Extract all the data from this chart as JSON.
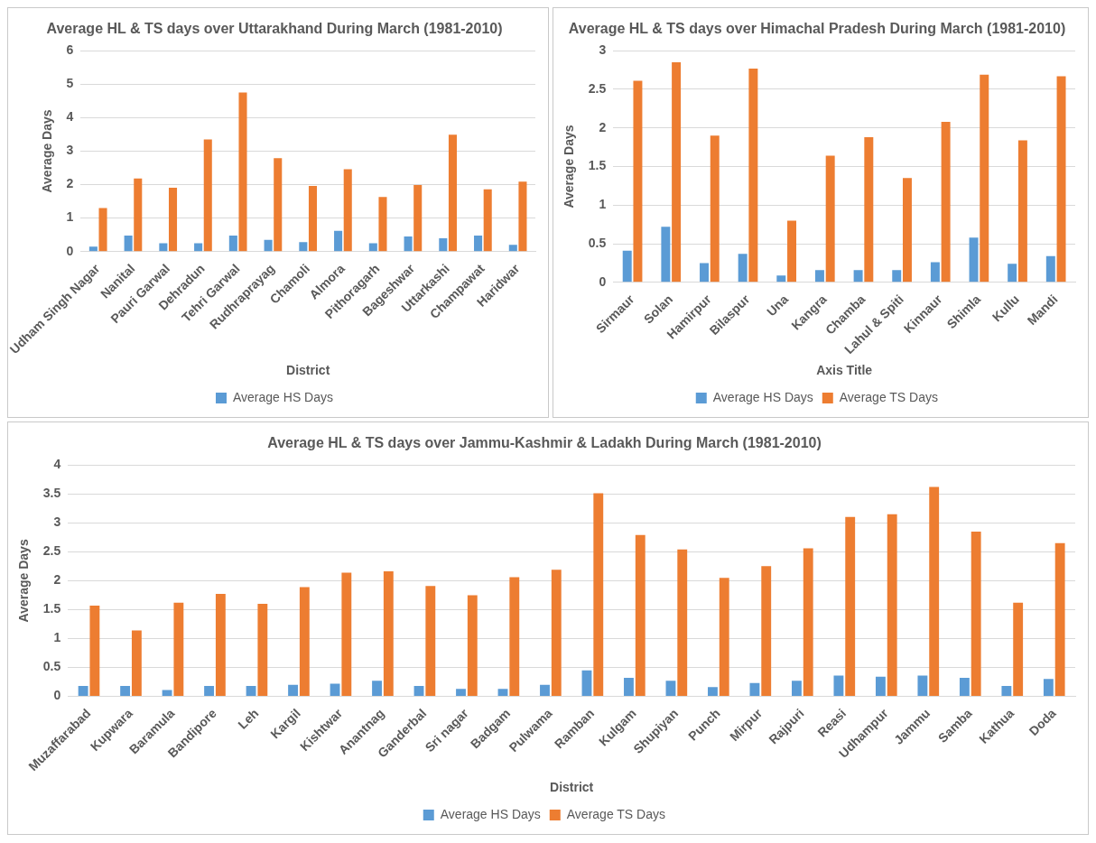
{
  "chart_data": [
    {
      "type": "bar",
      "title": "Average HL & TS days over Uttarakhand During March (1981-2010)",
      "xlabel": "District",
      "ylabel": "Average Days",
      "categories": [
        "Udham Singh Nagar",
        "Nanital",
        "Pauri Garwal",
        "Dehradun",
        "Tehri Garwal",
        "Rudhraprayag",
        "Chamoli",
        "Almora",
        "Pithoragarh",
        "Bageshwar",
        "Uttarkashi",
        "Champawat",
        "Haridwar"
      ],
      "series": [
        {
          "name": "Average HS Days",
          "color": "#5b9bd5",
          "values": [
            0.15,
            0.48,
            0.25,
            0.25,
            0.48,
            0.35,
            0.28,
            0.62,
            0.25,
            0.45,
            0.4,
            0.48,
            0.2
          ]
        },
        {
          "color": "#ed7d31",
          "values": [
            1.3,
            2.18,
            1.91,
            3.35,
            4.75,
            2.79,
            1.96,
            2.46,
            1.63,
            1.99,
            3.49,
            1.86,
            2.09
          ]
        }
      ],
      "ylim": [
        0,
        6
      ],
      "yticks": [
        0,
        1,
        2,
        3,
        4,
        5,
        6
      ],
      "grid": "y",
      "legend": "bottom"
    },
    {
      "type": "bar",
      "title": "Average HL & TS days over Himachal Pradesh During March (1981-2010)",
      "xlabel": "Axis Title",
      "ylabel": "Average Days",
      "categories": [
        "Sirmaur",
        "Solan",
        "Hamirpur",
        "Bilaspur",
        "Una",
        "Kangra",
        "Chamba",
        "Lahul & Spiti",
        "Kinnaur",
        "Shimla",
        "Kullu",
        "Mandi"
      ],
      "series": [
        {
          "name": "Average HS Days",
          "color": "#5b9bd5",
          "values": [
            0.41,
            0.72,
            0.25,
            0.37,
            0.09,
            0.16,
            0.16,
            0.16,
            0.26,
            0.58,
            0.24,
            0.34
          ]
        },
        {
          "name": "Average TS Days",
          "color": "#ed7d31",
          "values": [
            2.61,
            2.85,
            1.9,
            2.77,
            0.8,
            1.64,
            1.88,
            1.35,
            2.08,
            2.69,
            1.84,
            2.67
          ]
        }
      ],
      "ylim": [
        0,
        3
      ],
      "yticks": [
        0,
        0.5,
        1,
        1.5,
        2,
        2.5,
        3
      ],
      "grid": "y",
      "legend": "bottom"
    },
    {
      "type": "bar",
      "title": "Average HL & TS days over Jammu-Kashmir & Ladakh During March (1981-2010)",
      "xlabel": "District",
      "ylabel": "Average Days",
      "categories": [
        "Muzaffarabad",
        "Kupwara",
        "Baramula",
        "Bandipore",
        "Leh",
        "Kargil",
        "Kishtwar",
        "Anantnag",
        "Ganderbal",
        "Sri nagar",
        "Badgam",
        "Pulwama",
        "Ramban",
        "Kulgam",
        "Shupiyan",
        "Punch",
        "Mirpur",
        "Rajpuri",
        "Reasi",
        "Udhampur",
        "Jammu",
        "Samba",
        "Kathua",
        "Doda"
      ],
      "series": [
        {
          "name": "Average HS Days",
          "color": "#5b9bd5",
          "values": [
            0.18,
            0.18,
            0.11,
            0.18,
            0.18,
            0.2,
            0.22,
            0.27,
            0.18,
            0.13,
            0.13,
            0.2,
            0.45,
            0.32,
            0.27,
            0.16,
            0.23,
            0.27,
            0.36,
            0.34,
            0.36,
            0.32,
            0.18,
            0.3
          ]
        },
        {
          "name": "Average TS Days",
          "color": "#ed7d31",
          "values": [
            1.57,
            1.14,
            1.62,
            1.77,
            1.6,
            1.89,
            2.14,
            2.16,
            1.91,
            1.75,
            2.06,
            2.19,
            3.51,
            2.79,
            2.54,
            2.05,
            2.25,
            2.56,
            3.1,
            3.15,
            3.62,
            2.85,
            1.62,
            2.65
          ]
        }
      ],
      "ylim": [
        0,
        4
      ],
      "yticks": [
        0,
        0.5,
        1,
        1.5,
        2,
        2.5,
        3,
        3.5,
        4
      ],
      "grid": "y",
      "legend": "bottom"
    }
  ]
}
